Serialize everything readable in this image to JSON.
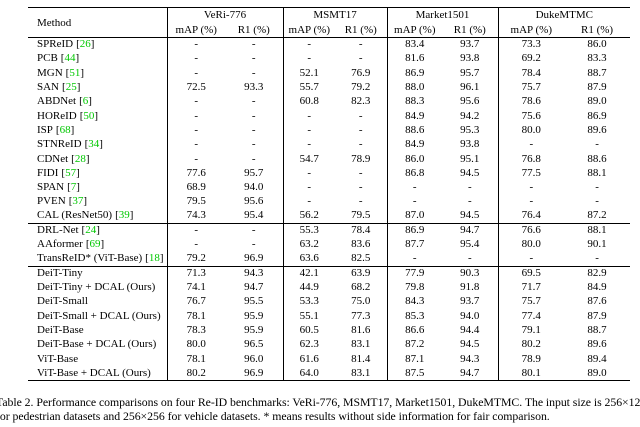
{
  "colors": {
    "citation_green": "#00c800",
    "text": "#000000",
    "background": "#ffffff"
  },
  "table": {
    "method_header": "Method",
    "citation_brackets": [
      "[",
      "]"
    ],
    "groups": [
      {
        "name": "VeRi-776",
        "sub": [
          "mAP (%)",
          "R1 (%)"
        ]
      },
      {
        "name": "MSMT17",
        "sub": [
          "mAP (%)",
          "R1 (%)"
        ]
      },
      {
        "name": "Market1501",
        "sub": [
          "mAP (%)",
          "R1 (%)"
        ]
      },
      {
        "name": "DukeMTMC",
        "sub": [
          "mAP (%)",
          "R1 (%)"
        ]
      }
    ],
    "sections": [
      {
        "name": "cnn-methods",
        "rows": [
          {
            "method": "SPReID",
            "cite": "26",
            "values": [
              "-",
              "-",
              "-",
              "-",
              "83.4",
              "93.7",
              "73.3",
              "86.0"
            ]
          },
          {
            "method": "PCB",
            "cite": "44",
            "values": [
              "-",
              "-",
              "-",
              "-",
              "81.6",
              "93.8",
              "69.2",
              "83.3"
            ]
          },
          {
            "method": "MGN",
            "cite": "51",
            "values": [
              "-",
              "-",
              "52.1",
              "76.9",
              "86.9",
              "95.7",
              "78.4",
              "88.7"
            ]
          },
          {
            "method": "SAN",
            "cite": "25",
            "values": [
              "72.5",
              "93.3",
              "55.7",
              "79.2",
              "88.0",
              "96.1",
              "75.7",
              "87.9"
            ]
          },
          {
            "method": "ABDNet",
            "cite": "6",
            "values": [
              "-",
              "-",
              "60.8",
              "82.3",
              "88.3",
              "95.6",
              "78.6",
              "89.0"
            ]
          },
          {
            "method": "HOReID",
            "cite": "50",
            "values": [
              "-",
              "-",
              "-",
              "-",
              "84.9",
              "94.2",
              "75.6",
              "86.9"
            ]
          },
          {
            "method": "ISP",
            "cite": "68",
            "values": [
              "-",
              "-",
              "-",
              "-",
              "88.6",
              "95.3",
              "80.0",
              "89.6"
            ]
          },
          {
            "method": "STNReID",
            "cite": "34",
            "values": [
              "-",
              "-",
              "-",
              "-",
              "84.9",
              "93.8",
              "-",
              "-"
            ]
          },
          {
            "method": "CDNet",
            "cite": "28",
            "values": [
              "-",
              "-",
              "54.7",
              "78.9",
              "86.0",
              "95.1",
              "76.8",
              "88.6"
            ]
          },
          {
            "method": "FIDI",
            "cite": "57",
            "values": [
              "77.6",
              "95.7",
              "-",
              "-",
              "86.8",
              "94.5",
              "77.5",
              "88.1"
            ]
          },
          {
            "method": "SPAN",
            "cite": "7",
            "values": [
              "68.9",
              "94.0",
              "-",
              "-",
              "-",
              "-",
              "-",
              "-"
            ]
          },
          {
            "method": "PVEN",
            "cite": "37",
            "values": [
              "79.5",
              "95.6",
              "-",
              "-",
              "-",
              "-",
              "-",
              "-"
            ]
          },
          {
            "method": "CAL (ResNet50)",
            "cite": "39",
            "values": [
              "74.3",
              "95.4",
              "56.2",
              "79.5",
              "87.0",
              "94.5",
              "76.4",
              "87.2"
            ]
          }
        ]
      },
      {
        "name": "transformer-methods",
        "rows": [
          {
            "method": "DRL-Net",
            "cite": "24",
            "values": [
              "-",
              "-",
              "55.3",
              "78.4",
              "86.9",
              "94.7",
              "76.6",
              "88.1"
            ]
          },
          {
            "method": "AAformer",
            "cite": "69",
            "values": [
              "-",
              "-",
              "63.2",
              "83.6",
              "87.7",
              "95.4",
              "80.0",
              "90.1"
            ]
          },
          {
            "method": "TransReID* (ViT-Base)",
            "cite": "18",
            "values": [
              "79.2",
              "96.9",
              "63.6",
              "82.5",
              "-",
              "-",
              "-",
              "-"
            ]
          }
        ]
      },
      {
        "name": "baselines-and-ours",
        "rows": [
          {
            "method": "DeiT-Tiny",
            "cite": null,
            "values": [
              "71.3",
              "94.3",
              "42.1",
              "63.9",
              "77.9",
              "90.3",
              "69.5",
              "82.9"
            ]
          },
          {
            "method": "DeiT-Tiny + DCAL (Ours)",
            "cite": null,
            "values": [
              "74.1",
              "94.7",
              "44.9",
              "68.2",
              "79.8",
              "91.8",
              "71.7",
              "84.9"
            ]
          },
          {
            "method": "DeiT-Small",
            "cite": null,
            "values": [
              "76.7",
              "95.5",
              "53.3",
              "75.0",
              "84.3",
              "93.7",
              "75.7",
              "87.6"
            ]
          },
          {
            "method": "DeiT-Small + DCAL (Ours)",
            "cite": null,
            "values": [
              "78.1",
              "95.9",
              "55.1",
              "77.3",
              "85.3",
              "94.0",
              "77.4",
              "87.9"
            ]
          },
          {
            "method": "DeiT-Base",
            "cite": null,
            "values": [
              "78.3",
              "95.9",
              "60.5",
              "81.6",
              "86.6",
              "94.4",
              "79.1",
              "88.7"
            ]
          },
          {
            "method": "DeiT-Base + DCAL (Ours)",
            "cite": null,
            "values": [
              "80.0",
              "96.5",
              "62.3",
              "83.1",
              "87.2",
              "94.5",
              "80.2",
              "89.6"
            ]
          },
          {
            "method": "ViT-Base",
            "cite": null,
            "values": [
              "78.1",
              "96.0",
              "61.6",
              "81.4",
              "87.1",
              "94.3",
              "78.9",
              "89.4"
            ]
          },
          {
            "method": "ViT-Base + DCAL (Ours)",
            "cite": null,
            "values": [
              "80.2",
              "96.9",
              "64.0",
              "83.1",
              "87.5",
              "94.7",
              "80.1",
              "89.0"
            ]
          }
        ]
      }
    ]
  },
  "caption": {
    "line1": "Table 2. Performance comparisons on four Re-ID benchmarks: VeRi-776, MSMT17, Market1501, DukeMTMC. The input size is 256×128",
    "line2": "for pedestrian datasets and 256×256 for vehicle datasets. * means results without side information for fair comparison."
  }
}
